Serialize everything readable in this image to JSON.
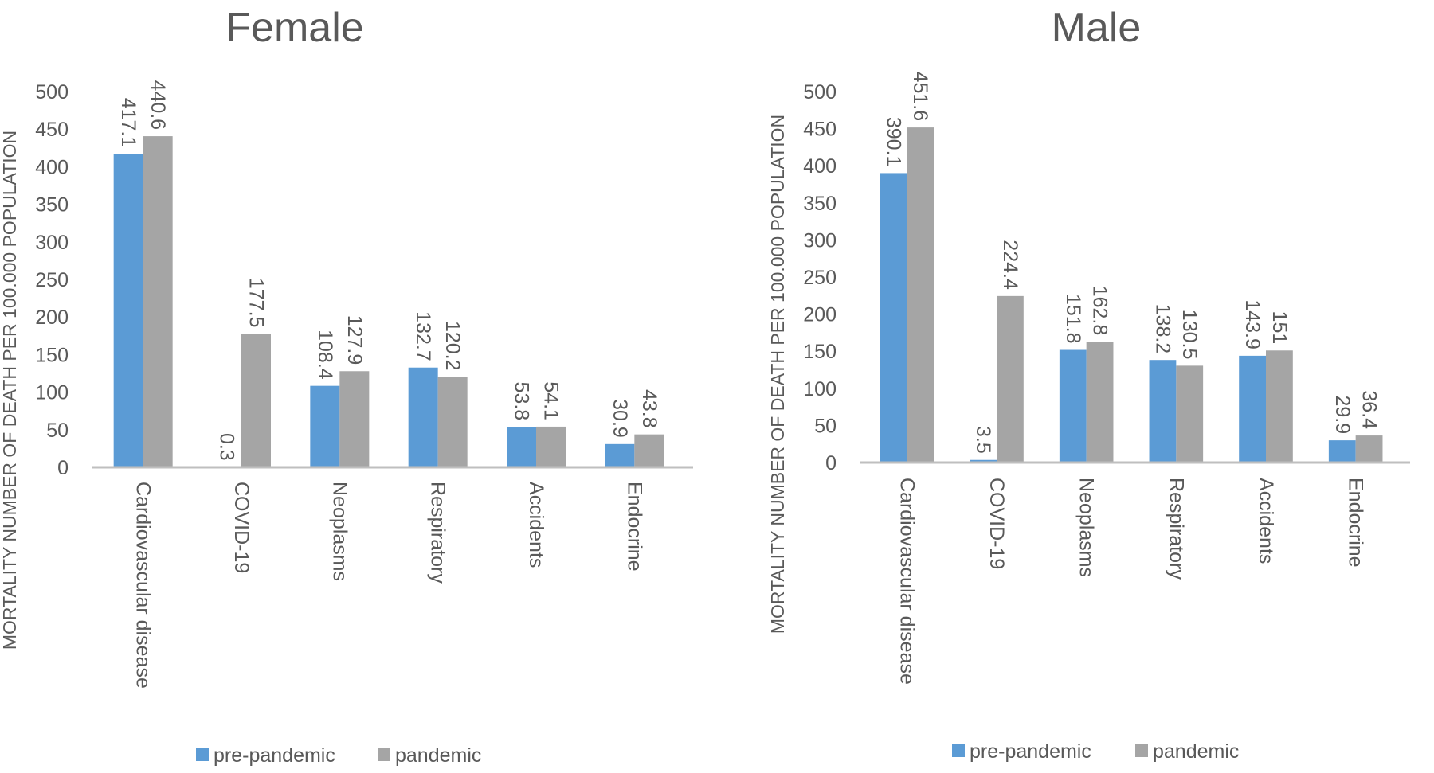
{
  "chart_data": [
    {
      "type": "bar",
      "title": "Female",
      "xlabel": "",
      "ylabel": "MORTALITY NUMBER OF DEATH PER 100.000 POPULATION",
      "categories": [
        "Cardiovascular disease",
        "COVID-19",
        "Neoplasms",
        "Respiratory",
        "Accidents",
        "Endocrine"
      ],
      "series": [
        {
          "name": "pre-pandemic",
          "values": [
            417.1,
            0.3,
            108.4,
            132.7,
            53.8,
            30.9
          ]
        },
        {
          "name": "pandemic",
          "values": [
            440.6,
            177.5,
            127.9,
            120.2,
            54.1,
            43.8
          ]
        }
      ],
      "data_labels": {
        "pre-pandemic": [
          "417.1",
          "0.3",
          "108.4",
          "132.7",
          "53.8",
          "30.9"
        ],
        "pandemic": [
          "440.6",
          "177.5",
          "127.9",
          "120.2",
          "54.1",
          "43.8"
        ]
      },
      "ylim": [
        0,
        500
      ],
      "yticks": [
        "0",
        "50",
        "100",
        "150",
        "200",
        "250",
        "300",
        "350",
        "400",
        "450",
        "500"
      ],
      "grid": false,
      "legend": "bottom"
    },
    {
      "type": "bar",
      "title": "Male",
      "xlabel": "",
      "ylabel": "MORTALITY NUMBER OF DEATH PER 100.000 POPULATION",
      "categories": [
        "Cardiovascular disease",
        "COVID-19",
        "Neoplasms",
        "Respiratory",
        "Accidents",
        "Endocrine"
      ],
      "series": [
        {
          "name": "pre-pandemic",
          "values": [
            390.1,
            3.5,
            151.8,
            138.2,
            143.9,
            29.9
          ]
        },
        {
          "name": "pandemic",
          "values": [
            451.6,
            224.4,
            162.8,
            130.5,
            151,
            36.4
          ]
        }
      ],
      "data_labels": {
        "pre-pandemic": [
          "390.1",
          "3.5",
          "151.8",
          "138.2",
          "143.9",
          "29.9"
        ],
        "pandemic": [
          "451.6",
          "224.4",
          "162.8",
          "130.5",
          "151",
          "36.4"
        ]
      },
      "ylim": [
        0,
        500
      ],
      "yticks": [
        "0",
        "50",
        "100",
        "150",
        "200",
        "250",
        "300",
        "350",
        "400",
        "450",
        "500"
      ],
      "grid": false,
      "legend": "bottom"
    }
  ],
  "colors": {
    "pre-pandemic": "#5b9bd5",
    "pandemic": "#a5a5a5",
    "text": "#595959",
    "axis": "#bfbfbf"
  }
}
